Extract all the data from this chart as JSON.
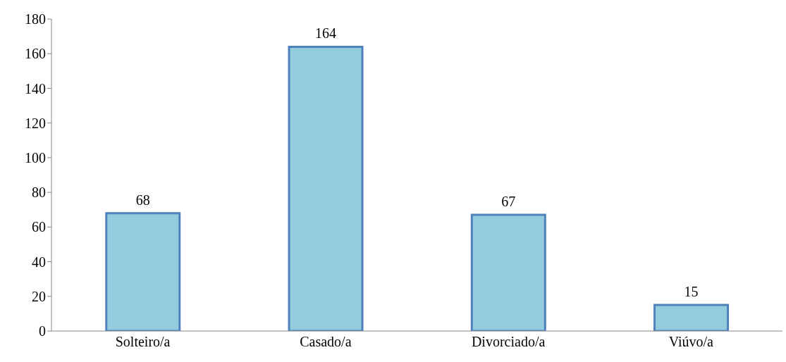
{
  "chart_data": {
    "type": "bar",
    "categories": [
      "Solteiro/a",
      "Casado/a",
      "Divorciado/a",
      "Viúvo/a"
    ],
    "values": [
      68,
      164,
      67,
      15
    ],
    "color": "#93cddd",
    "ylim": [
      0,
      180
    ],
    "yticks": [
      0,
      20,
      40,
      60,
      80,
      100,
      120,
      140,
      160,
      180
    ],
    "grid": false,
    "data_labels": true
  }
}
